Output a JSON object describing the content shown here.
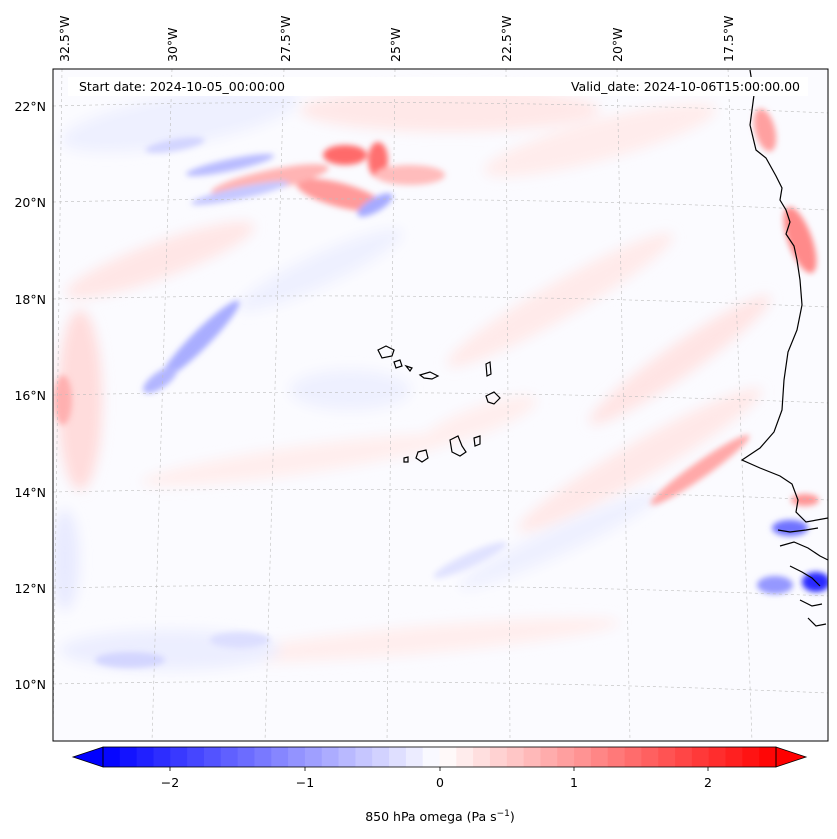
{
  "map": {
    "header": {
      "start_date": "Start date: 2024-10-05_00:00:00",
      "valid_date": "Valid_date: 2024-10-06T15:00:00.00"
    },
    "lon_labels": [
      "32.5°W",
      "30°W",
      "27.5°W",
      "25°W",
      "22.5°W",
      "20°W",
      "17.5°W"
    ],
    "lat_labels": [
      "22°N",
      "20°N",
      "18°N",
      "16°N",
      "14°N",
      "12°N",
      "10°N"
    ],
    "gridlines": "dashed",
    "field_description_colors": {
      "negative": "#0000ff",
      "zero": "#ffffff",
      "positive": "#ff0000",
      "coastline": "#000000"
    }
  },
  "colorbar": {
    "tick_labels": [
      "−2",
      "−1",
      "0",
      "1",
      "2"
    ],
    "range": [
      -2.75,
      2.75
    ],
    "extend": "both",
    "label_prefix": "850 hPa omega (Pa s",
    "label_exponent": "−1",
    "label_suffix": ")"
  }
}
